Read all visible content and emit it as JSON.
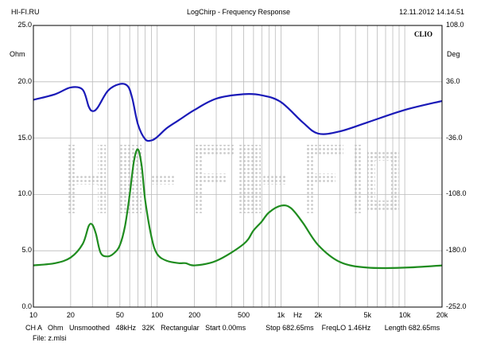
{
  "header": {
    "left": "HI-FI.RU",
    "center": "LogChirp - Frequency Response",
    "right": "12.11.2012 14.14.51"
  },
  "units": {
    "left": "Ohm",
    "right": "Deg",
    "x": "Hz"
  },
  "watermark": "CLIO",
  "footer": {
    "line1": "CH A   Ohm   Unsmoothed   48kHz   32K   Rectangular   Start 0.00ms          Stop 682.65ms    FreqLO 1.46Hz       Length 682.65ms",
    "line2": "File: z.mlsi"
  },
  "colors": {
    "impedance": "#1a1ab8",
    "phase": "#1f8c1f",
    "grid": "#bbbbbb",
    "background_text": "#cccccc"
  },
  "chart_data": {
    "type": "line",
    "x_scale": "log",
    "xlim": [
      10,
      20000
    ],
    "x_tick_labels": [
      "10",
      "20",
      "50",
      "100",
      "200",
      "500",
      "1k",
      "2k",
      "5k",
      "10k",
      "20k"
    ],
    "y_left_label": "Ohm",
    "y_left_ticks": [
      "25.0",
      "20.0",
      "15.0",
      "10.0",
      "5.0",
      "0.0"
    ],
    "y_left_lim": [
      0,
      25
    ],
    "y_right_label": "Deg",
    "y_right_ticks": [
      "108.0",
      "36.0",
      "-36.0",
      "-108.0",
      "-180.0",
      "-252.0"
    ],
    "y_right_lim": [
      -252,
      108
    ],
    "grid": true,
    "series": [
      {
        "axis": "left",
        "color": "#1a1ab8",
        "x": [
          10,
          15,
          20,
          25,
          28,
          30,
          33,
          40,
          50,
          58,
          63,
          70,
          80,
          90,
          100,
          120,
          150,
          200,
          300,
          500,
          700,
          1000,
          1500,
          2000,
          3000,
          5000,
          10000,
          20000
        ],
        "y": [
          18.4,
          18.9,
          19.5,
          19.3,
          17.8,
          17.4,
          17.7,
          19.2,
          19.8,
          19.6,
          18.5,
          16.2,
          14.9,
          14.8,
          15.1,
          15.9,
          16.6,
          17.5,
          18.5,
          18.9,
          18.8,
          18.2,
          16.4,
          15.4,
          15.6,
          16.4,
          17.5,
          18.3
        ]
      },
      {
        "axis": "left",
        "color": "#1f8c1f",
        "x": [
          10,
          15,
          20,
          25,
          28,
          30,
          32,
          35,
          40,
          45,
          50,
          55,
          60,
          65,
          70,
          75,
          80,
          90,
          100,
          120,
          150,
          170,
          200,
          300,
          500,
          600,
          700,
          800,
          1000,
          1200,
          1500,
          2000,
          3000,
          5000,
          10000,
          20000
        ],
        "y": [
          3.7,
          3.9,
          4.4,
          5.6,
          7.2,
          7.3,
          6.5,
          4.8,
          4.5,
          4.8,
          5.5,
          7.2,
          10.0,
          13.0,
          14.0,
          12.5,
          9.5,
          6.2,
          4.7,
          4.1,
          3.9,
          3.9,
          3.7,
          4.1,
          5.6,
          6.8,
          7.6,
          8.4,
          9.0,
          8.8,
          7.5,
          5.5,
          4.0,
          3.5,
          3.5,
          3.7
        ]
      }
    ]
  }
}
